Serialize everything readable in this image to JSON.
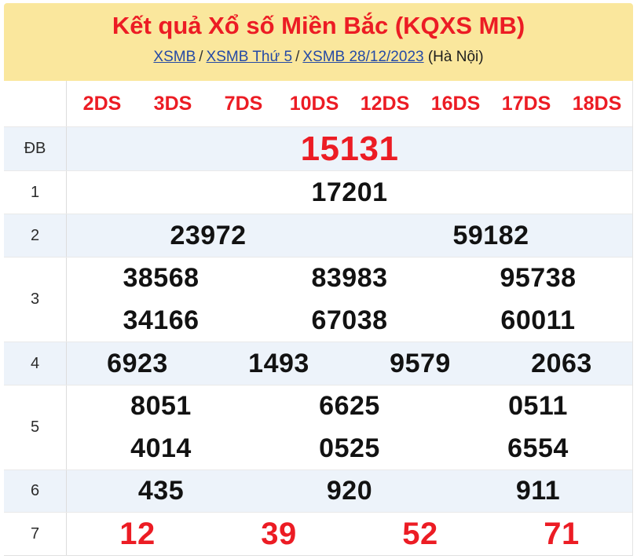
{
  "header": {
    "title": "Kết quả Xổ số Miền Bắc (KQXS MB)",
    "breadcrumb": [
      {
        "label": "XSMB"
      },
      {
        "label": "XSMB Thứ 5"
      },
      {
        "label": "XSMB 28/12/2023"
      }
    ],
    "separator": "/",
    "location": "(Hà Nội)"
  },
  "table": {
    "column_headers": [
      "2DS",
      "3DS",
      "7DS",
      "10DS",
      "12DS",
      "16DS",
      "17DS",
      "18DS"
    ],
    "rows": [
      {
        "label": "ĐB",
        "lines": [
          [
            "15131"
          ]
        ]
      },
      {
        "label": "1",
        "lines": [
          [
            "17201"
          ]
        ]
      },
      {
        "label": "2",
        "lines": [
          [
            "23972",
            "59182"
          ]
        ]
      },
      {
        "label": "3",
        "lines": [
          [
            "38568",
            "83983",
            "95738"
          ],
          [
            "34166",
            "67038",
            "60011"
          ]
        ]
      },
      {
        "label": "4",
        "lines": [
          [
            "6923",
            "1493",
            "9579",
            "2063"
          ]
        ]
      },
      {
        "label": "5",
        "lines": [
          [
            "8051",
            "6625",
            "0511"
          ],
          [
            "4014",
            "0525",
            "6554"
          ]
        ]
      },
      {
        "label": "6",
        "lines": [
          [
            "435",
            "920",
            "911"
          ]
        ]
      },
      {
        "label": "7",
        "lines": [
          [
            "12",
            "39",
            "52",
            "71"
          ]
        ]
      }
    ]
  },
  "colors": {
    "banner_yellow": "#fae79d",
    "accent_red": "#ec1c24",
    "row_alt_blue": "#edf3fa",
    "link_blue": "#254aa5"
  }
}
